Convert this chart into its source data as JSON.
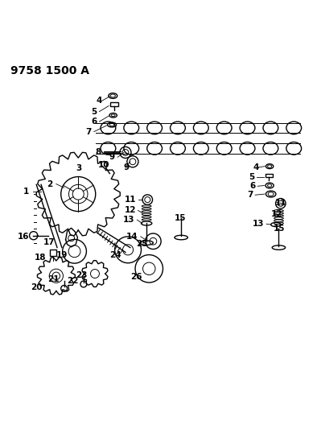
{
  "title": "9758 1500 A",
  "bg_color": "#ffffff",
  "line_color": "#000000",
  "label_color": "#000000",
  "fig_width": 3.94,
  "fig_height": 5.33,
  "dpi": 100
}
